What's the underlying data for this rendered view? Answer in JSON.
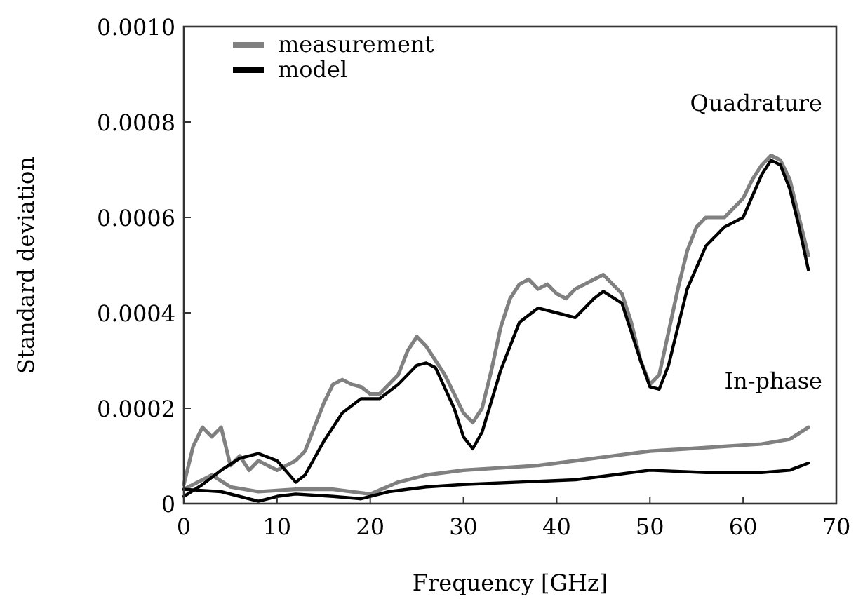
{
  "chart_data": {
    "type": "line",
    "xlabel": "Frequency [GHz]",
    "ylabel": "Standard deviation",
    "xlim": [
      0,
      70
    ],
    "ylim": [
      0,
      0.001
    ],
    "xticks": [
      0,
      10,
      20,
      30,
      40,
      50,
      60,
      70
    ],
    "yticks": [
      {
        "value": 0,
        "label": "0"
      },
      {
        "value": 0.0002,
        "label": "0.0002"
      },
      {
        "value": 0.0004,
        "label": "0.0004"
      },
      {
        "value": 0.0006,
        "label": "0.0006"
      },
      {
        "value": 0.0008,
        "label": "0.0008"
      },
      {
        "value": 0.001,
        "label": "0.0010"
      }
    ],
    "grid": false,
    "legend": "top left",
    "line_style": "solid",
    "annotations": [
      "Quadrature",
      "In-phase"
    ],
    "series": [
      {
        "name": "measurement",
        "color": "#808080",
        "x": [
          0,
          1,
          2,
          3,
          4,
          5,
          6,
          7,
          8,
          9,
          10,
          11,
          12,
          13,
          14,
          15,
          16,
          17,
          18,
          19,
          20,
          21,
          22,
          23,
          24,
          25,
          26,
          27,
          28,
          29,
          30,
          31,
          32,
          33,
          34,
          35,
          36,
          37,
          38,
          39,
          40,
          41,
          42,
          43,
          44,
          45,
          46,
          47,
          48,
          49,
          50,
          51,
          52,
          53,
          54,
          55,
          56,
          57,
          58,
          59,
          60,
          61,
          62,
          63,
          64,
          65,
          66,
          67
        ],
        "values": [
          4e-05,
          0.00012,
          0.00016,
          0.00014,
          0.00016,
          8e-05,
          0.0001,
          7e-05,
          9e-05,
          8e-05,
          7e-05,
          8e-05,
          9e-05,
          0.00011,
          0.00016,
          0.00021,
          0.00025,
          0.00026,
          0.00025,
          0.000245,
          0.00023,
          0.00023,
          0.00025,
          0.00027,
          0.00032,
          0.00035,
          0.00033,
          0.0003,
          0.00027,
          0.00023,
          0.00019,
          0.00017,
          0.0002,
          0.00028,
          0.00037,
          0.00043,
          0.00046,
          0.00047,
          0.00045,
          0.00046,
          0.00044,
          0.00043,
          0.00045,
          0.00046,
          0.00047,
          0.00048,
          0.00046,
          0.00044,
          0.00038,
          0.0003,
          0.00025,
          0.00027,
          0.00036,
          0.00045,
          0.00053,
          0.00058,
          0.0006,
          0.0006,
          0.0006,
          0.00062,
          0.00064,
          0.00068,
          0.00071,
          0.00073,
          0.00072,
          0.00068,
          0.0006,
          0.00052
        ]
      },
      {
        "color": "#808080",
        "x": [
          0,
          3,
          5,
          8,
          12,
          16,
          20,
          23,
          26,
          30,
          34,
          38,
          42,
          46,
          50,
          54,
          58,
          62,
          65,
          67
        ],
        "values": [
          3e-05,
          6e-05,
          3.5e-05,
          2.5e-05,
          3e-05,
          3e-05,
          2e-05,
          4.5e-05,
          6e-05,
          7e-05,
          7.5e-05,
          8e-05,
          9e-05,
          0.0001,
          0.00011,
          0.000115,
          0.00012,
          0.000125,
          0.000135,
          0.00016
        ]
      },
      {
        "name": "model",
        "color": "#000000",
        "x": [
          0,
          2,
          4,
          6,
          8,
          10,
          12,
          13,
          15,
          17,
          19,
          21,
          23,
          25,
          26,
          27,
          29,
          30,
          31,
          32,
          34,
          36,
          38,
          40,
          42,
          44,
          45,
          47,
          49,
          50,
          51,
          52,
          54,
          56,
          58,
          60,
          62,
          63,
          64,
          65,
          66,
          67
        ],
        "values": [
          1.5e-05,
          4e-05,
          7e-05,
          9.5e-05,
          0.000105,
          9e-05,
          4.5e-05,
          6e-05,
          0.00013,
          0.00019,
          0.00022,
          0.00022,
          0.00025,
          0.00029,
          0.000295,
          0.000285,
          0.0002,
          0.00014,
          0.000115,
          0.00015,
          0.00028,
          0.00038,
          0.00041,
          0.0004,
          0.00039,
          0.00043,
          0.000445,
          0.00042,
          0.0003,
          0.000245,
          0.00024,
          0.00029,
          0.00045,
          0.00054,
          0.00058,
          0.0006,
          0.00069,
          0.00072,
          0.00071,
          0.00066,
          0.00058,
          0.00049
        ]
      },
      {
        "color": "#000000",
        "x": [
          0,
          4,
          8,
          10,
          12,
          16,
          19,
          22,
          26,
          30,
          36,
          42,
          46,
          50,
          56,
          62,
          65,
          67
        ],
        "values": [
          3e-05,
          2.5e-05,
          5e-06,
          1.5e-05,
          2e-05,
          1.5e-05,
          1e-05,
          2.5e-05,
          3.5e-05,
          4e-05,
          4.5e-05,
          5e-05,
          6e-05,
          7e-05,
          6.5e-05,
          6.5e-05,
          7e-05,
          8.5e-05
        ]
      }
    ]
  }
}
